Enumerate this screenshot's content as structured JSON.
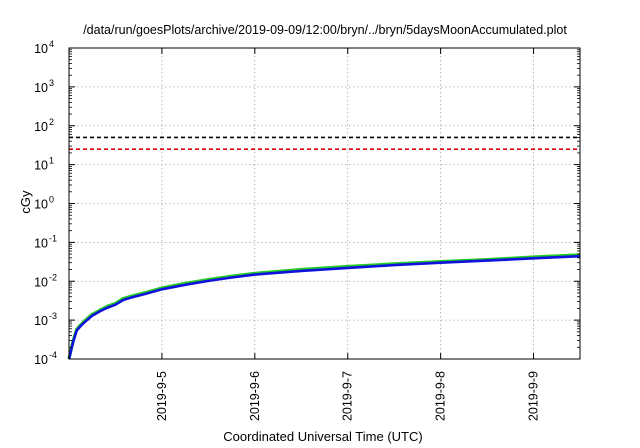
{
  "chart_data": {
    "type": "line",
    "title": "/data/run/goesPlots/archive/2019-09-09/12:00/bryn/../bryn/5daysMoonAccumulated.plot",
    "xlabel": "Coordinated Universal Time (UTC)",
    "ylabel": "cGy",
    "yscale": "log",
    "ylim": [
      0.0001,
      10000
    ],
    "xlim": [
      "2019-09-04 00:00",
      "2019-09-09 12:00"
    ],
    "grid": true,
    "y_ticks": [
      {
        "base": "10",
        "exp": "-4"
      },
      {
        "base": "10",
        "exp": "-3"
      },
      {
        "base": "10",
        "exp": "-2"
      },
      {
        "base": "10",
        "exp": "-1"
      },
      {
        "base": "10",
        "exp": "0"
      },
      {
        "base": "10",
        "exp": "1"
      },
      {
        "base": "10",
        "exp": "2"
      },
      {
        "base": "10",
        "exp": "3"
      },
      {
        "base": "10",
        "exp": "4"
      }
    ],
    "x_ticks": [
      "2019-9-5",
      "2019-9-6",
      "2019-9-7",
      "2019-9-8",
      "2019-9-9"
    ],
    "thresholds": [
      {
        "value": 50,
        "color": "#000000",
        "style": "dashed"
      },
      {
        "value": 25,
        "color": "#e00000",
        "style": "dashed"
      }
    ],
    "series": [
      {
        "color": "#22cc22",
        "x": [
          "2019-09-04 00:00",
          "2019-09-04 01:00",
          "2019-09-04 02:00",
          "2019-09-04 03:00",
          "2019-09-04 04:00",
          "2019-09-04 06:00",
          "2019-09-04 08:00",
          "2019-09-04 10:00",
          "2019-09-04 12:00",
          "2019-09-04 14:00",
          "2019-09-04 16:00",
          "2019-09-04 20:00",
          "2019-09-05 00:00",
          "2019-09-05 06:00",
          "2019-09-05 12:00",
          "2019-09-05 18:00",
          "2019-09-06 00:00",
          "2019-09-06 12:00",
          "2019-09-07 00:00",
          "2019-09-07 12:00",
          "2019-09-08 00:00",
          "2019-09-08 12:00",
          "2019-09-09 00:00",
          "2019-09-09 12:00"
        ],
        "y": [
          0.0001,
          0.00028,
          0.00058,
          0.00075,
          0.00095,
          0.0014,
          0.0018,
          0.0023,
          0.0027,
          0.0036,
          0.0041,
          0.0052,
          0.0067,
          0.0088,
          0.011,
          0.0135,
          0.016,
          0.02,
          0.024,
          0.028,
          0.032,
          0.036,
          0.042,
          0.048
        ]
      },
      {
        "color": "#1111dd",
        "x": [
          "2019-09-04 00:00",
          "2019-09-04 01:00",
          "2019-09-04 02:00",
          "2019-09-04 03:00",
          "2019-09-04 04:00",
          "2019-09-04 06:00",
          "2019-09-04 08:00",
          "2019-09-04 10:00",
          "2019-09-04 12:00",
          "2019-09-04 14:00",
          "2019-09-04 16:00",
          "2019-09-04 20:00",
          "2019-09-05 00:00",
          "2019-09-05 06:00",
          "2019-09-05 12:00",
          "2019-09-05 18:00",
          "2019-09-06 00:00",
          "2019-09-06 12:00",
          "2019-09-07 00:00",
          "2019-09-07 12:00",
          "2019-09-08 00:00",
          "2019-09-08 12:00",
          "2019-09-09 00:00",
          "2019-09-09 12:00"
        ],
        "y": [
          0.0001,
          0.00026,
          0.00054,
          0.0007,
          0.00088,
          0.0013,
          0.0017,
          0.0021,
          0.0025,
          0.0033,
          0.0038,
          0.0048,
          0.0062,
          0.0081,
          0.0102,
          0.0125,
          0.0148,
          0.0185,
          0.022,
          0.026,
          0.03,
          0.034,
          0.039,
          0.044
        ]
      }
    ]
  }
}
